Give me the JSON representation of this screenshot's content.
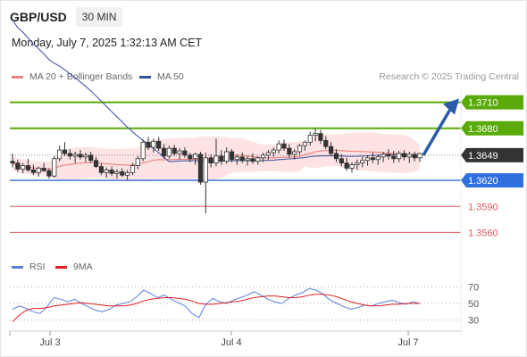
{
  "header": {
    "pair": "GBP/USD",
    "timeframe": "30 MIN",
    "timestamp": "Monday, July 7, 2025 1:32:13 AM CET"
  },
  "legend": {
    "ma20_label": "MA 20 + Bollinger Bands",
    "ma50_label": "MA 50",
    "credit": "Research © 2025 Trading Central"
  },
  "rsi_legend": {
    "rsi_label": "RSI",
    "ma9_label": "9MA"
  },
  "colors": {
    "ma20": "#f08080",
    "ma50": "#4a5aa8",
    "bands_fill": "#fde3e3",
    "resistance": "#5aaa0a",
    "pivot": "#2f6fde",
    "support": "#e05a5a",
    "current": "#333333",
    "arrow": "#2a5aa8",
    "rsi": "#5a7fd8",
    "ma9": "#e02020"
  },
  "chart_data": [
    {
      "type": "candlestick",
      "title": "GBP/USD",
      "timeframe": "30 MIN",
      "x_ticks": [
        "Jul 3",
        "Jul 4",
        "Jul 7"
      ],
      "ylim": [
        1.3545,
        1.3725
      ],
      "current_price": 1.3649,
      "levels": [
        {
          "label": "1.3710",
          "value": 1.371,
          "kind": "resistance"
        },
        {
          "label": "1.3680",
          "value": 1.368,
          "kind": "resistance"
        },
        {
          "label": "1.3620",
          "value": 1.362,
          "kind": "pivot"
        },
        {
          "label": "1.3590",
          "value": 1.359,
          "kind": "support"
        },
        {
          "label": "1.3560",
          "value": 1.356,
          "kind": "support"
        }
      ],
      "candles": [
        [
          1.3642,
          1.3651,
          1.3635,
          1.364
        ],
        [
          1.364,
          1.3644,
          1.363,
          1.3633
        ],
        [
          1.3633,
          1.364,
          1.3628,
          1.3637
        ],
        [
          1.3637,
          1.3645,
          1.363,
          1.3632
        ],
        [
          1.3632,
          1.3638,
          1.3626,
          1.3629
        ],
        [
          1.3629,
          1.3636,
          1.3624,
          1.3634
        ],
        [
          1.3634,
          1.364,
          1.363,
          1.3631
        ],
        [
          1.3631,
          1.3634,
          1.3622,
          1.3625
        ],
        [
          1.3625,
          1.3648,
          1.3623,
          1.3645
        ],
        [
          1.3645,
          1.366,
          1.3642,
          1.3655
        ],
        [
          1.3655,
          1.3664,
          1.3648,
          1.3651
        ],
        [
          1.3651,
          1.3656,
          1.3644,
          1.3648
        ],
        [
          1.3648,
          1.3653,
          1.364,
          1.365
        ],
        [
          1.365,
          1.3655,
          1.3644,
          1.3647
        ],
        [
          1.3647,
          1.3652,
          1.3641,
          1.3649
        ],
        [
          1.3649,
          1.3653,
          1.364,
          1.3643
        ],
        [
          1.3643,
          1.3647,
          1.3634,
          1.3636
        ],
        [
          1.3636,
          1.364,
          1.3626,
          1.3629
        ],
        [
          1.3629,
          1.3635,
          1.3623,
          1.3632
        ],
        [
          1.3632,
          1.3636,
          1.3625,
          1.3628
        ],
        [
          1.3628,
          1.3633,
          1.3622,
          1.363
        ],
        [
          1.363,
          1.3634,
          1.3624,
          1.3626
        ],
        [
          1.3626,
          1.3632,
          1.362,
          1.3629
        ],
        [
          1.3629,
          1.364,
          1.3626,
          1.3637
        ],
        [
          1.3637,
          1.3648,
          1.3633,
          1.3645
        ],
        [
          1.3645,
          1.3667,
          1.3642,
          1.3664
        ],
        [
          1.3664,
          1.367,
          1.3655,
          1.3658
        ],
        [
          1.3658,
          1.3668,
          1.3652,
          1.3665
        ],
        [
          1.3665,
          1.367,
          1.3654,
          1.3657
        ],
        [
          1.3657,
          1.3662,
          1.3645,
          1.3648
        ],
        [
          1.3648,
          1.366,
          1.3645,
          1.3657
        ],
        [
          1.3657,
          1.3661,
          1.3648,
          1.3651
        ],
        [
          1.3651,
          1.3657,
          1.3644,
          1.3654
        ],
        [
          1.3654,
          1.3658,
          1.3646,
          1.3649
        ],
        [
          1.3649,
          1.3652,
          1.3641,
          1.3645
        ],
        [
          1.3645,
          1.3652,
          1.3638,
          1.365
        ],
        [
          1.365,
          1.3653,
          1.3615,
          1.3618
        ],
        [
          1.3618,
          1.3652,
          1.3582,
          1.3646
        ],
        [
          1.3646,
          1.365,
          1.3635,
          1.364
        ],
        [
          1.364,
          1.3668,
          1.3636,
          1.3648
        ],
        [
          1.3648,
          1.3655,
          1.3638,
          1.3642
        ],
        [
          1.3642,
          1.3658,
          1.3639,
          1.3653
        ],
        [
          1.3653,
          1.3656,
          1.3641,
          1.3644
        ],
        [
          1.3644,
          1.365,
          1.3638,
          1.3647
        ],
        [
          1.3647,
          1.3652,
          1.364,
          1.3643
        ],
        [
          1.3643,
          1.3648,
          1.3637,
          1.3645
        ],
        [
          1.3645,
          1.3651,
          1.3639,
          1.3642
        ],
        [
          1.3642,
          1.3648,
          1.3638,
          1.3646
        ],
        [
          1.3646,
          1.3652,
          1.3641,
          1.3649
        ],
        [
          1.3649,
          1.3655,
          1.3644,
          1.3652
        ],
        [
          1.3652,
          1.3658,
          1.3647,
          1.3655
        ],
        [
          1.3655,
          1.3666,
          1.3651,
          1.3662
        ],
        [
          1.3662,
          1.3667,
          1.3654,
          1.3657
        ],
        [
          1.3657,
          1.3662,
          1.3646,
          1.365
        ],
        [
          1.365,
          1.3656,
          1.3644,
          1.3653
        ],
        [
          1.3653,
          1.3662,
          1.3649,
          1.366
        ],
        [
          1.366,
          1.3666,
          1.3654,
          1.3664
        ],
        [
          1.3664,
          1.3676,
          1.366,
          1.3672
        ],
        [
          1.3672,
          1.368,
          1.3665,
          1.3674
        ],
        [
          1.3674,
          1.3678,
          1.3662,
          1.3666
        ],
        [
          1.3666,
          1.3671,
          1.3656,
          1.3659
        ],
        [
          1.3659,
          1.3664,
          1.3648,
          1.3651
        ],
        [
          1.3651,
          1.3656,
          1.3641,
          1.3645
        ],
        [
          1.3645,
          1.365,
          1.3636,
          1.364
        ],
        [
          1.364,
          1.3646,
          1.3631,
          1.3634
        ],
        [
          1.3634,
          1.3641,
          1.3629,
          1.3638
        ],
        [
          1.3638,
          1.3644,
          1.3632,
          1.364
        ],
        [
          1.364,
          1.3647,
          1.3635,
          1.3643
        ],
        [
          1.3643,
          1.3649,
          1.3637,
          1.3646
        ],
        [
          1.3646,
          1.3652,
          1.364,
          1.3644
        ],
        [
          1.3644,
          1.365,
          1.3638,
          1.3647
        ],
        [
          1.3647,
          1.3653,
          1.3641,
          1.365
        ],
        [
          1.365,
          1.3656,
          1.3644,
          1.3648
        ],
        [
          1.3648,
          1.3654,
          1.364,
          1.3645
        ],
        [
          1.3645,
          1.3654,
          1.3641,
          1.3651
        ],
        [
          1.3651,
          1.3655,
          1.3643,
          1.3647
        ],
        [
          1.3647,
          1.3653,
          1.364,
          1.365
        ],
        [
          1.365,
          1.3653,
          1.3642,
          1.3646
        ],
        [
          1.3646,
          1.3652,
          1.3641,
          1.3651
        ]
      ]
    },
    {
      "type": "line",
      "title": "RSI",
      "series": [
        {
          "name": "RSI",
          "values": [
            43,
            47,
            44,
            40,
            38,
            46,
            57,
            55,
            52,
            55,
            50,
            46,
            42,
            40,
            43,
            48,
            50,
            52,
            58,
            66,
            62,
            57,
            60,
            55,
            51,
            47,
            38,
            33,
            49,
            56,
            52,
            50,
            54,
            57,
            60,
            64,
            60,
            55,
            52,
            50,
            56,
            60,
            63,
            68,
            66,
            61,
            54,
            50,
            46,
            43,
            45,
            48,
            47,
            50,
            52,
            54,
            51,
            49,
            52,
            50
          ]
        },
        {
          "name": "9MA",
          "values": [
            28,
            36,
            42,
            44,
            44,
            45,
            47,
            48,
            49,
            50,
            51,
            50,
            49,
            48,
            47,
            47,
            47,
            48,
            50,
            53,
            55,
            56,
            57,
            57,
            56,
            55,
            53,
            50,
            49,
            49,
            50,
            51,
            52,
            53,
            55,
            57,
            58,
            59,
            59,
            58,
            57,
            57,
            58,
            60,
            61,
            61,
            60,
            58,
            55,
            52,
            50,
            48,
            47,
            47,
            48,
            49,
            49,
            50,
            50,
            50
          ]
        }
      ],
      "y_ticks": [
        70,
        50,
        30
      ],
      "ylim": [
        20,
        80
      ],
      "reference_lines": [
        70,
        50,
        30
      ]
    }
  ]
}
